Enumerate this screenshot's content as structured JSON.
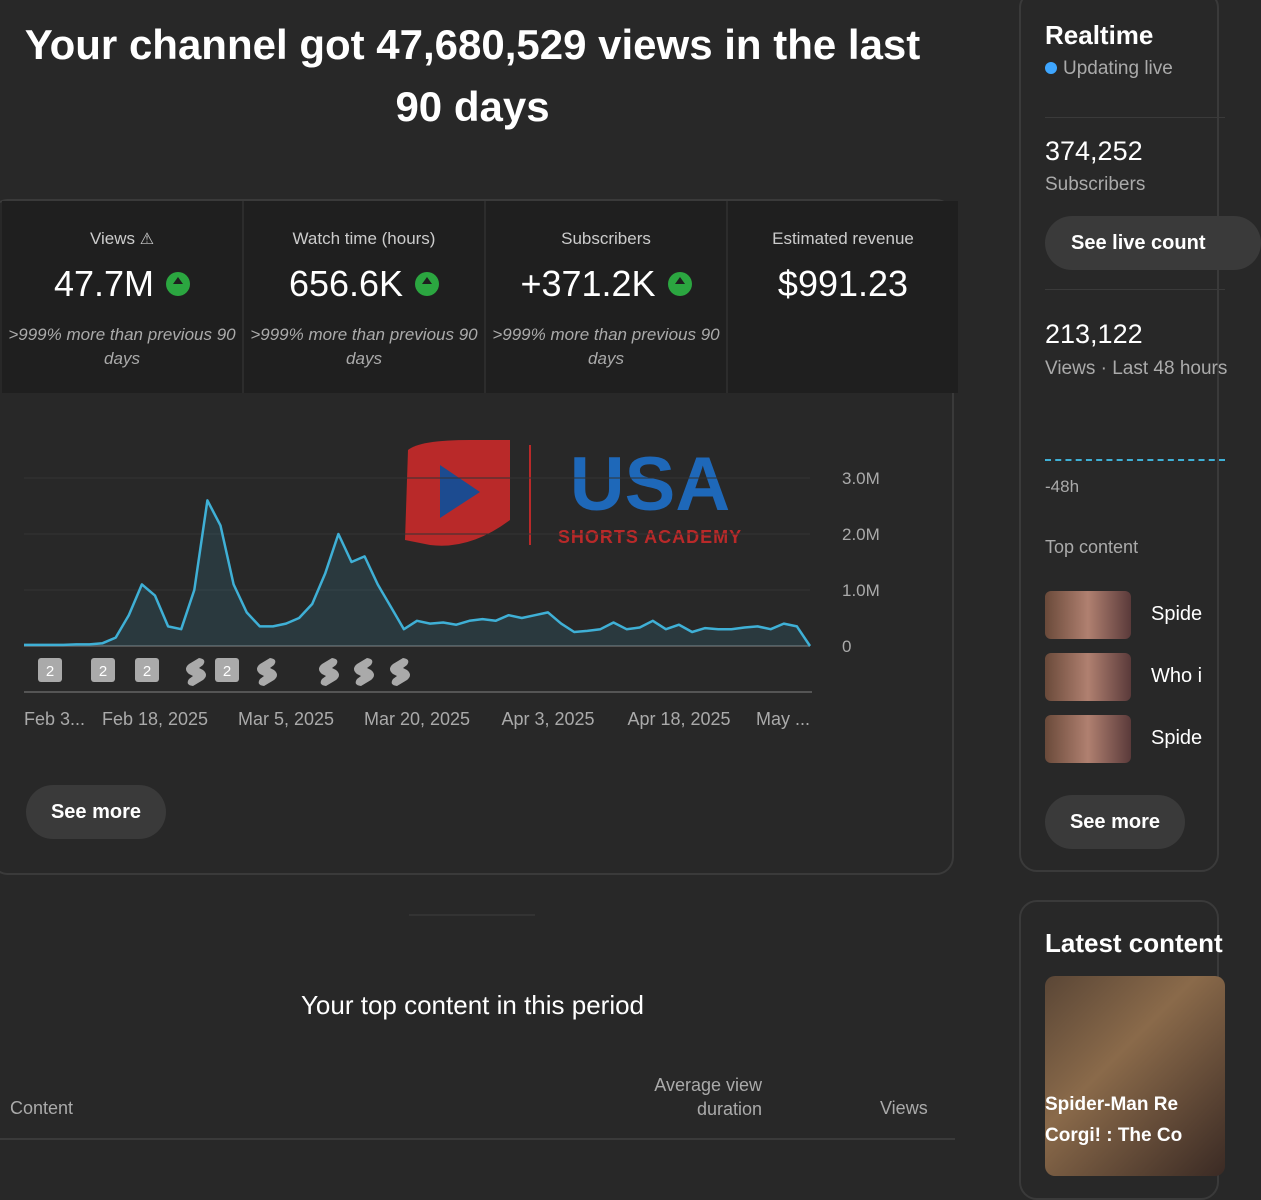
{
  "header": {
    "title": "Your channel got 47,680,529 views in the last 90 days"
  },
  "metrics": [
    {
      "label": "Views",
      "value": "47.7M",
      "change": ">999% more than previous 90 days"
    },
    {
      "label": "Watch time (hours)",
      "value": "656.6K",
      "change": ">999% more than previous 90 days"
    },
    {
      "label": "Subscribers",
      "value": "+371.2K",
      "change": ">999% more than previous 90 days"
    },
    {
      "label": "Estimated revenue",
      "value": "$991.23"
    }
  ],
  "chart_data": {
    "type": "line",
    "color": "#3fb0d6",
    "categories": [
      "Feb 3...",
      null,
      null,
      null,
      null,
      null,
      null,
      null,
      null,
      null,
      "Feb 18, 2025",
      null,
      null,
      null,
      null,
      null,
      null,
      null,
      null,
      null,
      "Mar 5, 2025",
      null,
      null,
      null,
      null,
      null,
      null,
      null,
      null,
      null,
      "Mar 20, 2025",
      null,
      null,
      null,
      null,
      null,
      null,
      null,
      null,
      null,
      "Apr 3, 2025",
      null,
      null,
      null,
      null,
      null,
      null,
      null,
      null,
      null,
      "Apr 18, 2025",
      null,
      null,
      null,
      null,
      null,
      null,
      null,
      null,
      null,
      "May ..."
    ],
    "values": [
      20000,
      20000,
      20000,
      20000,
      30000,
      30000,
      50000,
      150000,
      550000,
      1100000,
      900000,
      350000,
      300000,
      1000000,
      2600000,
      2150000,
      1100000,
      600000,
      350000,
      350000,
      400000,
      500000,
      750000,
      1300000,
      2000000,
      1500000,
      1600000,
      1100000,
      700000,
      300000,
      450000,
      400000,
      420000,
      380000,
      450000,
      480000,
      450000,
      550000,
      500000,
      550000,
      600000,
      400000,
      250000,
      270000,
      300000,
      420000,
      300000,
      330000,
      450000,
      300000,
      380000,
      250000,
      320000,
      300000,
      300000,
      330000,
      350000,
      300000,
      400000,
      350000,
      0
    ],
    "ylim": [
      0,
      3000000
    ],
    "yticks": [
      0,
      {
        "value": 1000000,
        "label": "1.0M"
      },
      {
        "value": 2000000,
        "label": "2.0M"
      },
      {
        "value": 3000000,
        "label": "3.0M"
      }
    ],
    "grid": true,
    "badges": [
      "2",
      "2",
      "2",
      "2"
    ],
    "watermark": {
      "title": "USA",
      "subtitle": "SHORTS ACADEMY"
    }
  },
  "see_more": "See more",
  "top_content": {
    "title": "Your top content in this period",
    "columns": [
      "Content",
      "Average view duration",
      "Views"
    ]
  },
  "realtime": {
    "title": "Realtime",
    "status": "Updating live",
    "subscribers": {
      "value": "374,252",
      "label": "Subscribers"
    },
    "live_count_button": "See live count",
    "views": {
      "value": "213,122",
      "label": "Views · Last 48 hours"
    },
    "axis_label": "-48h",
    "top_content_title": "Top content",
    "items": [
      "Spide",
      "Who i",
      "Spide"
    ],
    "see_more": "See more"
  },
  "latest": {
    "title": "Latest content",
    "video_title": [
      "Spider-Man Re",
      "Corgi! : The Co"
    ]
  }
}
